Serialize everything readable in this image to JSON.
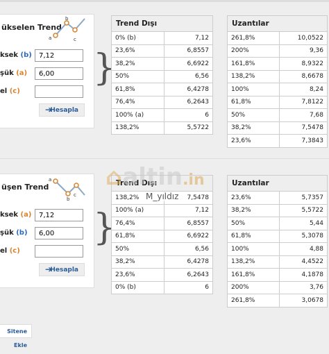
{
  "top": {
    "card": {
      "title": "ükselen Trend",
      "icon_letters": [
        "b",
        "a",
        "c"
      ],
      "inputs": [
        {
          "label": "ksek",
          "letter": "(b)",
          "value": "7,12"
        },
        {
          "label": "şük",
          "letter": "(a)",
          "value": "6,00"
        },
        {
          "label": "el",
          "letter": "(c)",
          "value": ""
        }
      ],
      "button": "Hesapla"
    },
    "trend_disi": {
      "title": "Trend Dışı",
      "rows": [
        [
          "0% (b)",
          "7,12"
        ],
        [
          "23,6%",
          "6,8557"
        ],
        [
          "38,2%",
          "6,6922"
        ],
        [
          "50%",
          "6,56"
        ],
        [
          "61,8%",
          "6,4278"
        ],
        [
          "76,4%",
          "6,2643"
        ],
        [
          "100% (a)",
          "6"
        ],
        [
          "138,2%",
          "5,5722"
        ]
      ]
    },
    "uzantilar": {
      "title": "Uzantılar",
      "rows": [
        [
          "261,8%",
          "10,0522"
        ],
        [
          "200%",
          "9,36"
        ],
        [
          "161,8%",
          "8,9322"
        ],
        [
          "138,2%",
          "8,6678"
        ],
        [
          "100%",
          "8,24"
        ],
        [
          "61,8%",
          "7,8122"
        ],
        [
          "50%",
          "7,68"
        ],
        [
          "38,2%",
          "7,5478"
        ],
        [
          "23,6%",
          "7,3843"
        ]
      ]
    }
  },
  "bottom": {
    "card": {
      "title": "üşen Trend",
      "icon_letters": [
        "a",
        "b",
        "c"
      ],
      "inputs": [
        {
          "label": "ksek",
          "letter": "(a)",
          "value": "7,12"
        },
        {
          "label": "şük",
          "letter": "(b)",
          "value": "6,00"
        },
        {
          "label": "el",
          "letter": "(c)",
          "value": ""
        }
      ],
      "button": "Hesapla"
    },
    "trend_disi": {
      "title": "Trend Dışı",
      "rows": [
        [
          "138,2%",
          "7,5478"
        ],
        [
          "100% (a)",
          "7,12"
        ],
        [
          "76,4%",
          "6,8557"
        ],
        [
          "61,8%",
          "6,6922"
        ],
        [
          "50%",
          "6,56"
        ],
        [
          "38,2%",
          "6,4278"
        ],
        [
          "23,6%",
          "6,2643"
        ],
        [
          "0% (b)",
          "6"
        ]
      ]
    },
    "uzantilar": {
      "title": "Uzantılar",
      "rows": [
        [
          "23,6%",
          "5,7357"
        ],
        [
          "38,2%",
          "5,5722"
        ],
        [
          "50%",
          "5,44"
        ],
        [
          "61,8%",
          "5,3078"
        ],
        [
          "100%",
          "4,88"
        ],
        [
          "138,2%",
          "4,4522"
        ],
        [
          "161,8%",
          "4,1878"
        ],
        [
          "200%",
          "3,76"
        ],
        [
          "261,8%",
          "3,0678"
        ]
      ]
    }
  },
  "watermark": {
    "brand": "altin",
    "tld": ".in",
    "user": "M_yıldız"
  },
  "footer_button": "Sitene Ekle"
}
